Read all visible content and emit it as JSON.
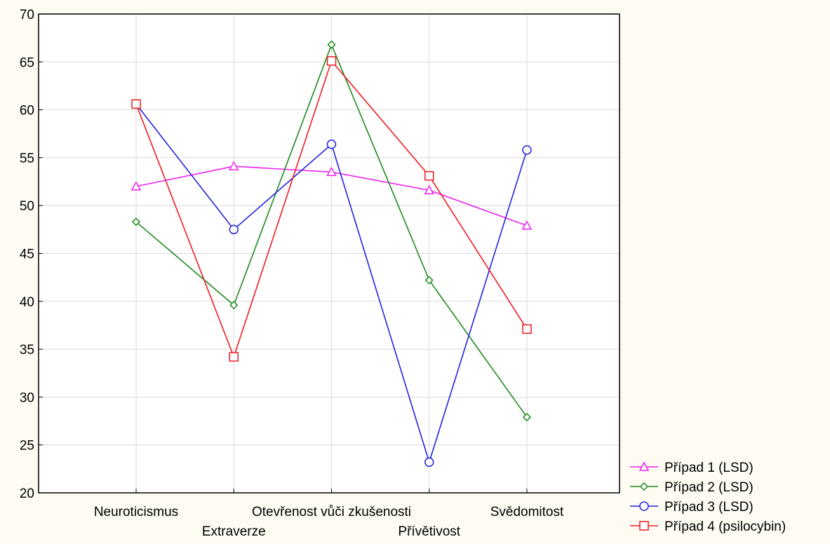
{
  "chart_data": {
    "type": "line",
    "title": "",
    "xlabel": "",
    "ylabel": "",
    "categories": [
      "Neuroticismus",
      "Extraverze",
      "Otevřenost vůči zkušenosti",
      "Přívětivost",
      "Svědomitost"
    ],
    "ylim": [
      20,
      70
    ],
    "yticks": [
      20,
      25,
      30,
      35,
      40,
      45,
      50,
      55,
      60,
      65,
      70
    ],
    "grid": true,
    "legend_position": "bottom-right",
    "series": [
      {
        "name": "Případ 1 (LSD)",
        "color": "#ee22ee",
        "marker": "triangle",
        "values": [
          52.0,
          54.1,
          53.5,
          51.6,
          47.9
        ]
      },
      {
        "name": "Případ 2 (LSD)",
        "color": "#1e8a1e",
        "marker": "diamond",
        "values": [
          48.3,
          39.6,
          66.8,
          42.2,
          27.9
        ]
      },
      {
        "name": "Případ 3 (LSD)",
        "color": "#2222dd",
        "marker": "circle",
        "values": [
          60.6,
          47.5,
          56.4,
          23.2,
          55.8
        ]
      },
      {
        "name": "Případ 4 (psilocybin)",
        "color": "#ee1c24",
        "marker": "square",
        "values": [
          60.6,
          34.2,
          65.1,
          53.1,
          37.1
        ]
      }
    ]
  }
}
